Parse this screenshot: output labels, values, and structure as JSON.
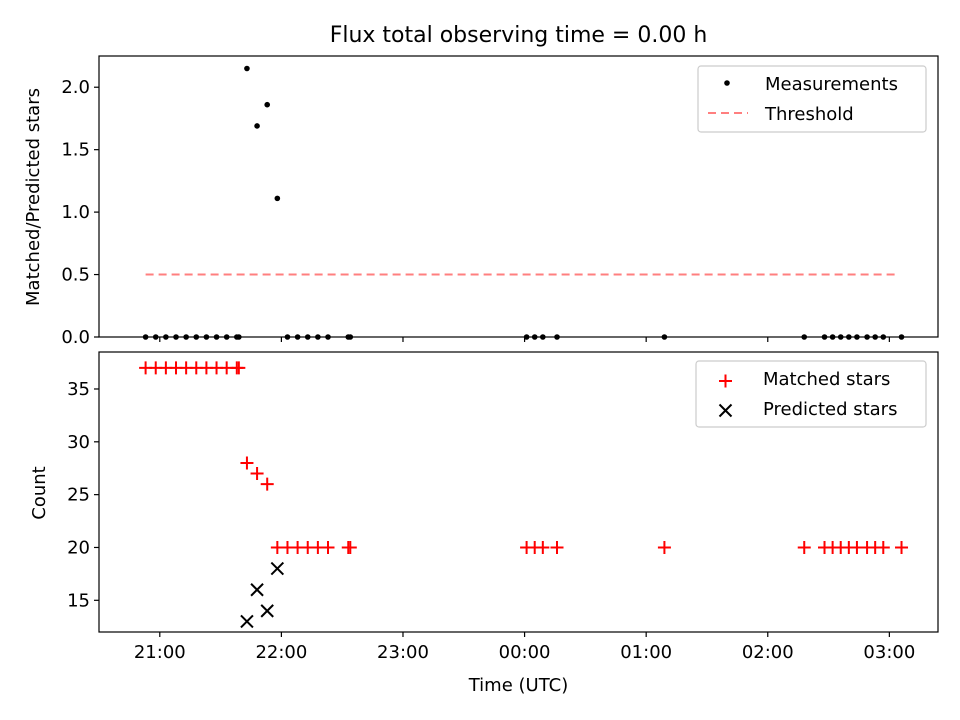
{
  "title": "Flux total observing time = 0.00 h",
  "xlabel": "Time (UTC)",
  "x_ticks": [
    "21:00",
    "22:00",
    "23:00",
    "00:00",
    "01:00",
    "02:00",
    "03:00"
  ],
  "colors": {
    "measurement": "#000000",
    "threshold": "#ff7f7f",
    "matched": "#ff0000",
    "predicted": "#000000"
  },
  "chart_data": [
    {
      "type": "scatter",
      "ylabel": "Matched/Predicted stars",
      "ylim": [
        0,
        2.25
      ],
      "y_ticks": [
        "0.0",
        "0.5",
        "1.0",
        "1.5",
        "2.0"
      ],
      "y_tick_values": [
        0,
        0.5,
        1.0,
        1.5,
        2.0
      ],
      "legend": "top-right",
      "series": [
        {
          "name": "Measurements",
          "marker": "dot",
          "points": [
            [
              "20:53",
              0
            ],
            [
              "20:58",
              0
            ],
            [
              "21:03",
              0
            ],
            [
              "21:08",
              0
            ],
            [
              "21:13",
              0
            ],
            [
              "21:18",
              0
            ],
            [
              "21:23",
              0
            ],
            [
              "21:28",
              0
            ],
            [
              "21:33",
              0
            ],
            [
              "21:38",
              0
            ],
            [
              "21:39",
              0
            ],
            [
              "21:43",
              2.15
            ],
            [
              "21:48",
              1.69
            ],
            [
              "21:53",
              1.86
            ],
            [
              "21:58",
              1.11
            ],
            [
              "22:03",
              0
            ],
            [
              "22:08",
              0
            ],
            [
              "22:13",
              0
            ],
            [
              "22:18",
              0
            ],
            [
              "22:23",
              0
            ],
            [
              "22:33",
              0
            ],
            [
              "22:34",
              0
            ],
            [
              "00:01",
              0
            ],
            [
              "00:05",
              0
            ],
            [
              "00:09",
              0
            ],
            [
              "00:16",
              0
            ],
            [
              "01:09",
              0
            ],
            [
              "02:18",
              0
            ],
            [
              "02:28",
              0
            ],
            [
              "02:32",
              0
            ],
            [
              "02:36",
              0
            ],
            [
              "02:40",
              0
            ],
            [
              "02:44",
              0
            ],
            [
              "02:49",
              0
            ],
            [
              "02:53",
              0
            ],
            [
              "02:57",
              0
            ],
            [
              "03:06",
              0
            ]
          ]
        },
        {
          "name": "Threshold",
          "style": "dashed",
          "points": [
            [
              "20:53",
              0.5
            ],
            [
              "03:03",
              0.5
            ]
          ]
        }
      ]
    },
    {
      "type": "scatter",
      "ylabel": "Count",
      "ylim": [
        12,
        38.5
      ],
      "y_ticks": [
        "15",
        "20",
        "25",
        "30",
        "35"
      ],
      "y_tick_values": [
        15,
        20,
        25,
        30,
        35
      ],
      "legend": "top-right",
      "series": [
        {
          "name": "Matched stars",
          "marker": "plus",
          "points": [
            [
              "20:53",
              37
            ],
            [
              "20:58",
              37
            ],
            [
              "21:03",
              37
            ],
            [
              "21:08",
              37
            ],
            [
              "21:13",
              37
            ],
            [
              "21:18",
              37
            ],
            [
              "21:23",
              37
            ],
            [
              "21:28",
              37
            ],
            [
              "21:33",
              37
            ],
            [
              "21:38",
              37
            ],
            [
              "21:39",
              37
            ],
            [
              "21:43",
              28
            ],
            [
              "21:48",
              27
            ],
            [
              "21:53",
              26
            ],
            [
              "21:58",
              20
            ],
            [
              "22:03",
              20
            ],
            [
              "22:08",
              20
            ],
            [
              "22:13",
              20
            ],
            [
              "22:18",
              20
            ],
            [
              "22:23",
              20
            ],
            [
              "22:33",
              20
            ],
            [
              "22:34",
              20
            ],
            [
              "00:01",
              20
            ],
            [
              "00:05",
              20
            ],
            [
              "00:09",
              20
            ],
            [
              "00:16",
              20
            ],
            [
              "01:09",
              20
            ],
            [
              "02:18",
              20
            ],
            [
              "02:28",
              20
            ],
            [
              "02:32",
              20
            ],
            [
              "02:36",
              20
            ],
            [
              "02:40",
              20
            ],
            [
              "02:44",
              20
            ],
            [
              "02:49",
              20
            ],
            [
              "02:53",
              20
            ],
            [
              "02:57",
              20
            ],
            [
              "03:06",
              20
            ]
          ]
        },
        {
          "name": "Predicted stars",
          "marker": "x",
          "points": [
            [
              "21:43",
              13
            ],
            [
              "21:48",
              16
            ],
            [
              "21:53",
              14
            ],
            [
              "21:58",
              18
            ]
          ]
        }
      ]
    }
  ]
}
